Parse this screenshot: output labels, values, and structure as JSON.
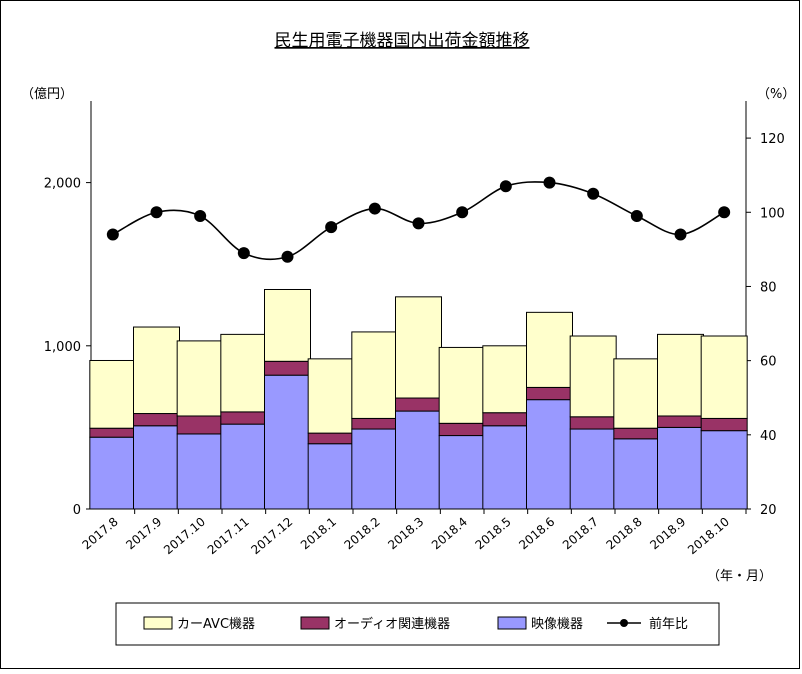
{
  "chart_data": {
    "type": "bar",
    "title": "民生用電子機器国内出荷金額推移",
    "y_unit_left": "（億円）",
    "y_unit_right": "（%）",
    "x_unit": "（年・月）",
    "categories": [
      "2017.8",
      "2017.9",
      "2017.10",
      "2017.11",
      "2017.12",
      "2018.1",
      "2018.2",
      "2018.3",
      "2018.4",
      "2018.5",
      "2018.6",
      "2018.7",
      "2018.8",
      "2018.9",
      "2018.10"
    ],
    "ylim_left": [
      0,
      2500
    ],
    "ylim_right": [
      20,
      130
    ],
    "yticks_left": [
      "0",
      "1,000",
      "2,000"
    ],
    "yticks_left_values": [
      0,
      1000,
      2000
    ],
    "yticks_right": [
      "20",
      "40",
      "60",
      "80",
      "100",
      "120"
    ],
    "yticks_right_values": [
      20,
      40,
      60,
      80,
      100,
      120
    ],
    "stack_series": [
      {
        "name": "映像機器",
        "color": "#9999ff",
        "values": [
          440,
          510,
          460,
          520,
          820,
          400,
          490,
          600,
          450,
          510,
          670,
          490,
          430,
          500,
          480
        ]
      },
      {
        "name": "オーディオ関連機器",
        "color": "#993366",
        "values": [
          55,
          75,
          110,
          75,
          85,
          65,
          65,
          80,
          75,
          80,
          75,
          75,
          65,
          70,
          75
        ]
      },
      {
        "name": "カーAVC機器",
        "color": "#ffffcc",
        "values": [
          415,
          530,
          460,
          475,
          440,
          455,
          530,
          620,
          465,
          410,
          460,
          495,
          425,
          500,
          505
        ]
      }
    ],
    "line_series": {
      "name": "前年比",
      "color": "#000000",
      "axis": "right",
      "values": [
        94,
        100,
        99,
        89,
        88,
        96,
        101,
        97,
        100,
        107,
        108,
        105,
        99,
        94,
        100
      ]
    }
  }
}
